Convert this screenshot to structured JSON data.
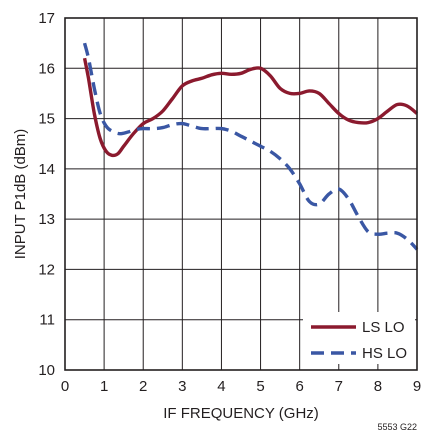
{
  "chart_data": {
    "type": "line",
    "title": "",
    "xlabel": "IF FREQUENCY (GHz)",
    "ylabel": "INPUT P1dB  (dBm)",
    "xlim": [
      0,
      9
    ],
    "ylim": [
      10,
      17
    ],
    "x_ticks": [
      0,
      1,
      2,
      3,
      4,
      5,
      6,
      7,
      8,
      9
    ],
    "y_ticks": [
      10,
      11,
      12,
      13,
      14,
      15,
      16,
      17
    ],
    "grid": true,
    "legend_position": "bottom-right",
    "series": [
      {
        "name": "LS LO",
        "color": "#8b1a2e",
        "line_style": "solid",
        "x": [
          0.5,
          0.6,
          0.75,
          0.9,
          1.05,
          1.2,
          1.35,
          1.5,
          1.75,
          2.0,
          2.25,
          2.5,
          2.75,
          3.0,
          3.25,
          3.5,
          3.75,
          4.0,
          4.25,
          4.5,
          4.75,
          5.0,
          5.25,
          5.5,
          5.75,
          6.0,
          6.25,
          6.5,
          6.75,
          7.0,
          7.25,
          7.5,
          7.75,
          8.0,
          8.25,
          8.5,
          8.75,
          9.0
        ],
        "values": [
          16.2,
          15.8,
          15.1,
          14.6,
          14.35,
          14.27,
          14.3,
          14.45,
          14.7,
          14.9,
          15.0,
          15.15,
          15.4,
          15.65,
          15.75,
          15.8,
          15.87,
          15.9,
          15.88,
          15.9,
          15.98,
          16.0,
          15.85,
          15.6,
          15.5,
          15.5,
          15.55,
          15.5,
          15.3,
          15.1,
          14.97,
          14.92,
          14.92,
          15.0,
          15.15,
          15.28,
          15.25,
          15.1
        ]
      },
      {
        "name": "HS LO",
        "color": "#3a57a4",
        "line_style": "dashed",
        "x": [
          0.5,
          0.6,
          0.75,
          0.9,
          1.05,
          1.2,
          1.4,
          1.6,
          1.8,
          2.0,
          2.25,
          2.5,
          2.75,
          3.0,
          3.25,
          3.5,
          3.75,
          4.0,
          4.25,
          4.5,
          4.75,
          5.0,
          5.25,
          5.5,
          5.75,
          6.0,
          6.25,
          6.5,
          6.75,
          7.0,
          7.25,
          7.5,
          7.75,
          8.0,
          8.25,
          8.5,
          8.75,
          9.0
        ],
        "values": [
          16.5,
          16.2,
          15.6,
          15.1,
          14.85,
          14.75,
          14.7,
          14.73,
          14.78,
          14.8,
          14.8,
          14.82,
          14.88,
          14.9,
          14.85,
          14.8,
          14.8,
          14.8,
          14.75,
          14.65,
          14.55,
          14.45,
          14.35,
          14.2,
          14.0,
          13.7,
          13.35,
          13.3,
          13.5,
          13.6,
          13.4,
          13.05,
          12.75,
          12.7,
          12.72,
          12.72,
          12.6,
          12.4
        ]
      }
    ],
    "annotation": "5553 G22"
  }
}
